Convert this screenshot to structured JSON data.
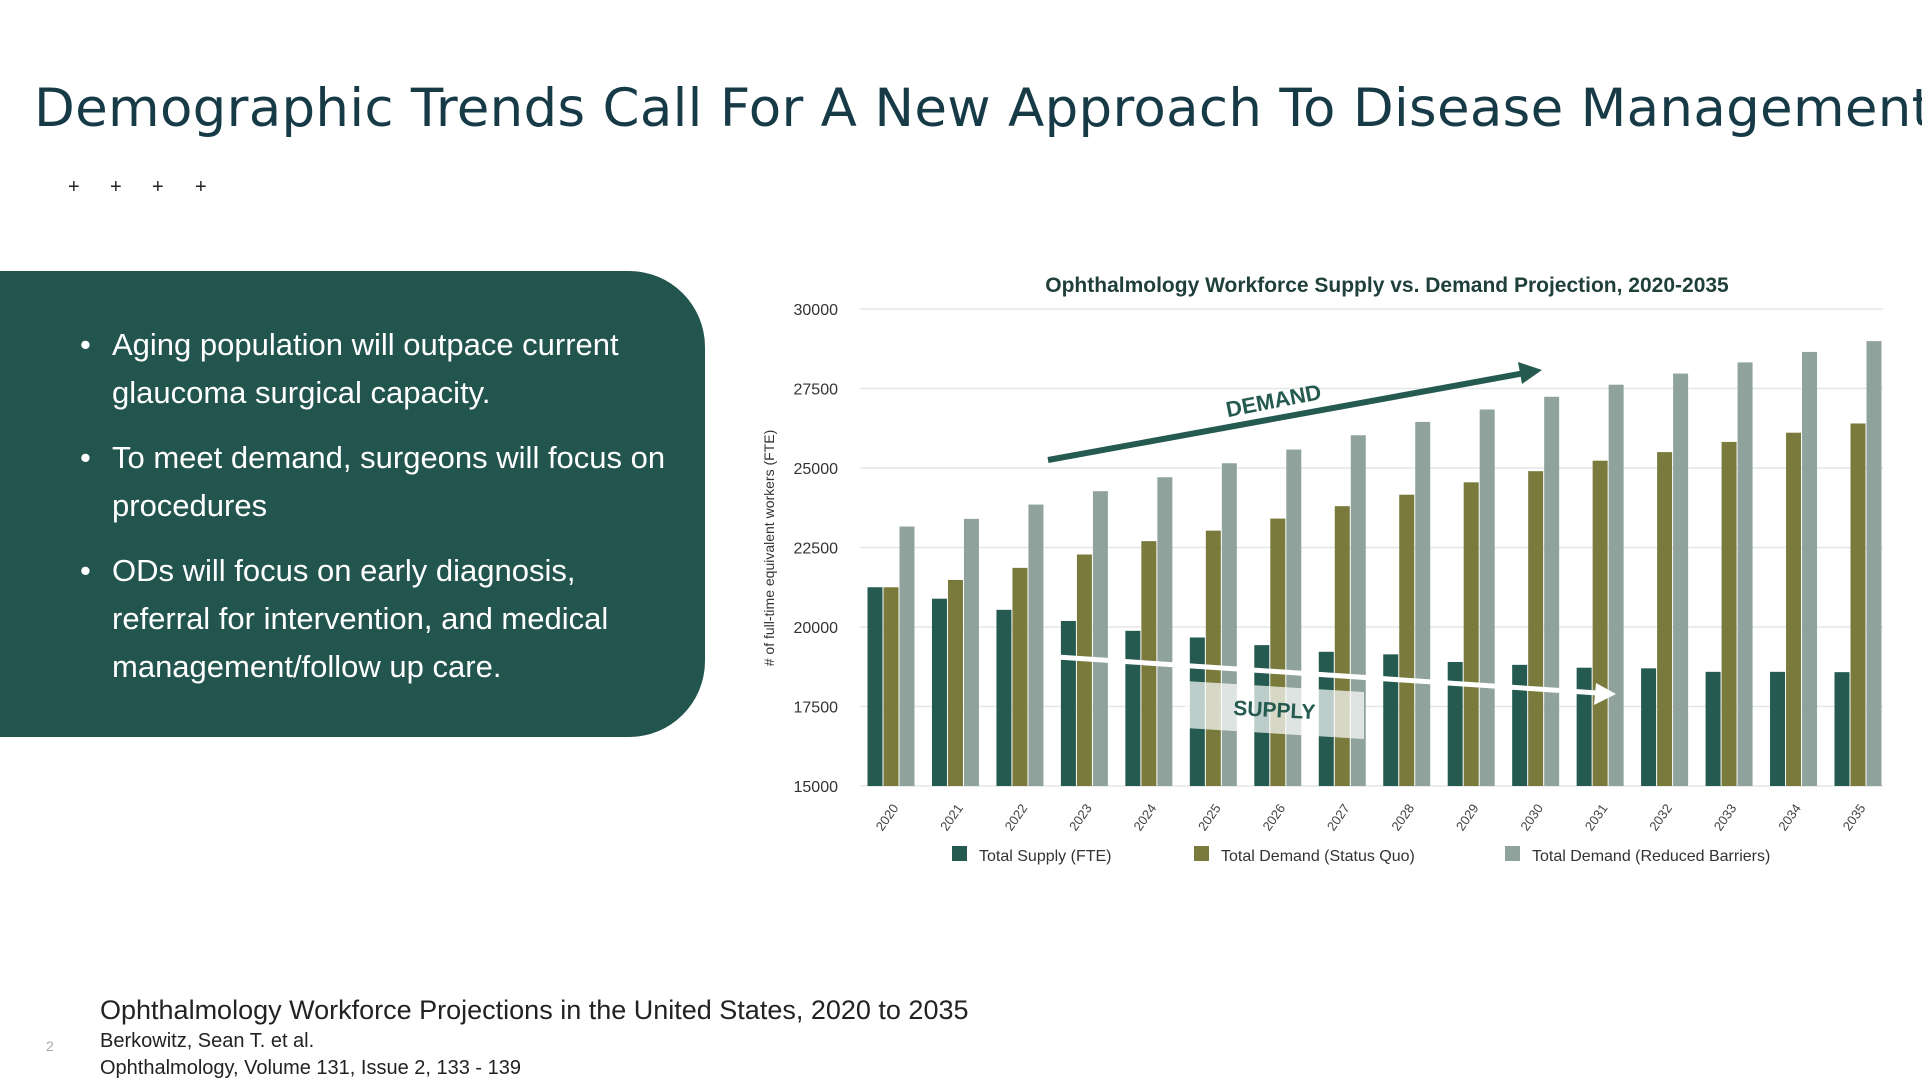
{
  "slide": {
    "title": "Demographic Trends Call For A New Approach To Disease Management",
    "stars": [
      "+",
      "+",
      "+",
      "+"
    ],
    "bullets": [
      "Aging population will outpace current glaucoma surgical capacity.",
      "To meet demand, surgeons will focus on procedures",
      "ODs will focus on early diagnosis, referral for intervention, and medical management/follow up care."
    ],
    "bullet_glyph": "•",
    "citation": {
      "title": "Ophthalmology Workforce Projections in the United States, 2020 to 2035",
      "authors": "Berkowitz, Sean T. et al.",
      "journal": "Ophthalmology, Volume 131, Issue 2, 133 - 139"
    },
    "page_number": "2",
    "colors": {
      "panel": "#23554f",
      "title": "#173a47"
    }
  },
  "chart_data": {
    "type": "bar",
    "title": "Ophthalmology Workforce Supply vs. Demand Projection, 2020-2035",
    "xlabel": "",
    "ylabel": "# of full-time equivalent workers (FTE)",
    "ylim": [
      15000,
      30000
    ],
    "yticks": [
      15000,
      17500,
      20000,
      22500,
      25000,
      27500,
      30000
    ],
    "grid": true,
    "legend_position": "bottom",
    "categories": [
      "2020",
      "2021",
      "2022",
      "2023",
      "2024",
      "2025",
      "2026",
      "2027",
      "2028",
      "2029",
      "2030",
      "2031",
      "2032",
      "2033",
      "2034",
      "2035"
    ],
    "series": [
      {
        "name": "Total Supply (FTE)",
        "color": "#245a4f",
        "values": [
          21250,
          20890,
          20540,
          20190,
          19880,
          19670,
          19430,
          19220,
          19140,
          18900,
          18810,
          18720,
          18700,
          18590,
          18590,
          18580
        ]
      },
      {
        "name": "Total Demand (Status Quo)",
        "color": "#7a7a3d",
        "values": [
          21250,
          21480,
          21860,
          22280,
          22700,
          23030,
          23410,
          23800,
          24160,
          24550,
          24900,
          25230,
          25500,
          25820,
          26110,
          26400
        ]
      },
      {
        "name": "Total Demand (Reduced Barriers)",
        "color": "#8fa39c",
        "values": [
          23160,
          23400,
          23850,
          24270,
          24710,
          25150,
          25580,
          26030,
          26450,
          26840,
          27240,
          27620,
          27970,
          28320,
          28650,
          28990
        ]
      }
    ],
    "annotations": {
      "demand": "DEMAND",
      "supply": "SUPPLY"
    }
  }
}
